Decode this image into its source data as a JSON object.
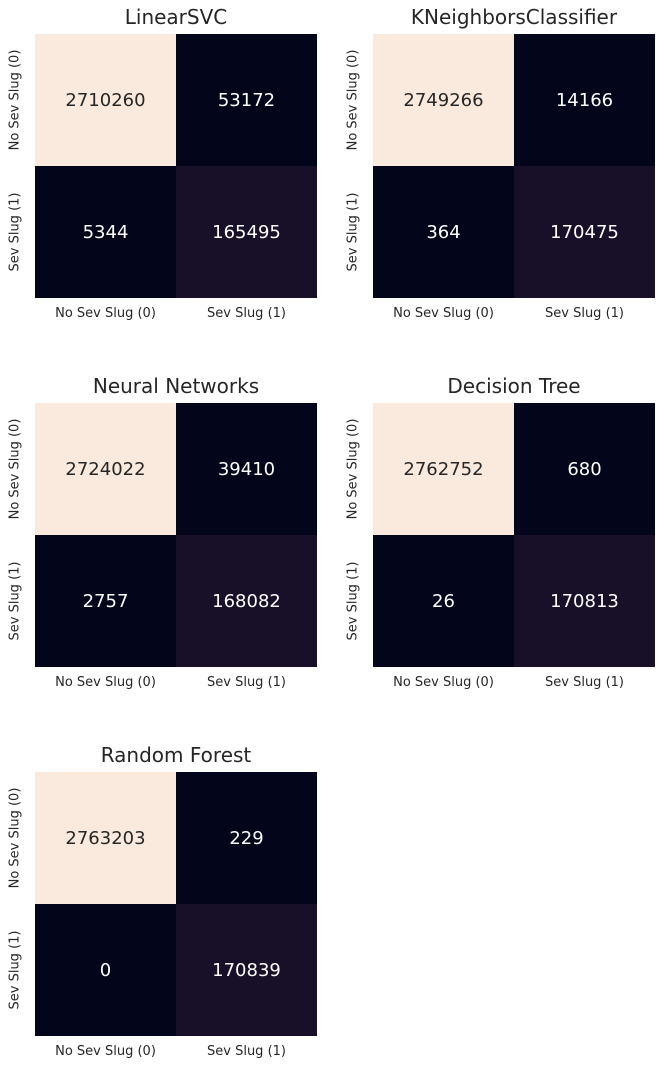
{
  "chart_data": [
    {
      "type": "heatmap",
      "title": "LinearSVC",
      "rows": [
        "No Sev Slug (0)",
        "Sev Slug (1)"
      ],
      "cols": [
        "No Sev Slug (0)",
        "Sev Slug (1)"
      ],
      "values": [
        [
          2710260,
          53172
        ],
        [
          5344,
          165495
        ]
      ]
    },
    {
      "type": "heatmap",
      "title": "KNeighborsClassifier",
      "rows": [
        "No Sev Slug (0)",
        "Sev Slug (1)"
      ],
      "cols": [
        "No Sev Slug (0)",
        "Sev Slug (1)"
      ],
      "values": [
        [
          2749266,
          14166
        ],
        [
          364,
          170475
        ]
      ]
    },
    {
      "type": "heatmap",
      "title": "Neural Networks",
      "rows": [
        "No Sev Slug (0)",
        "Sev Slug (1)"
      ],
      "cols": [
        "No Sev Slug (0)",
        "Sev Slug (1)"
      ],
      "values": [
        [
          2724022,
          39410
        ],
        [
          2757,
          168082
        ]
      ]
    },
    {
      "type": "heatmap",
      "title": "Decision Tree",
      "rows": [
        "No Sev Slug (0)",
        "Sev Slug (1)"
      ],
      "cols": [
        "No Sev Slug (0)",
        "Sev Slug (1)"
      ],
      "values": [
        [
          2762752,
          680
        ],
        [
          26,
          170813
        ]
      ]
    },
    {
      "type": "heatmap",
      "title": "Random Forest",
      "rows": [
        "No Sev Slug (0)",
        "Sev Slug (1)"
      ],
      "cols": [
        "No Sev Slug (0)",
        "Sev Slug (1)"
      ],
      "values": [
        [
          2763203,
          229
        ],
        [
          0,
          170839
        ]
      ]
    }
  ],
  "colors": {
    "high": "#faeadd",
    "low": "#03051a",
    "mid": "#180f29",
    "text_on_light": "#262626",
    "text_on_dark": "#ffffff"
  }
}
